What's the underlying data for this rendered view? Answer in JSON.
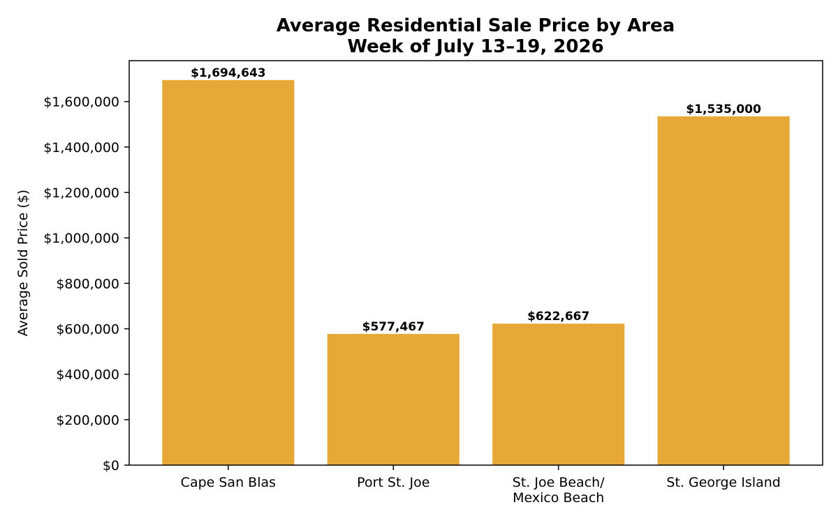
{
  "chart_data": {
    "type": "bar",
    "title_lines": [
      "Average Residential Sale Price by Area",
      "Week of July 13–19, 2026"
    ],
    "xlabel": "",
    "ylabel": "Average Sold Price ($)",
    "categories": [
      [
        "Cape San Blas"
      ],
      [
        "Port St. Joe"
      ],
      [
        "St. Joe Beach/",
        "Mexico Beach"
      ],
      [
        "St. George Island"
      ]
    ],
    "values": [
      1694643,
      577467,
      622667,
      1535000
    ],
    "data_labels": [
      "$1,694,643",
      "$577,467",
      "$622,667",
      "$1,535,000"
    ],
    "ylim": [
      0,
      1780000
    ],
    "yticks": [
      0,
      200000,
      400000,
      600000,
      800000,
      1000000,
      1200000,
      1400000,
      1600000
    ],
    "ytick_labels": [
      "$0",
      "$200,000",
      "$400,000",
      "$600,000",
      "$800,000",
      "$1,000,000",
      "$1,200,000",
      "$1,400,000",
      "$1,600,000"
    ],
    "bar_color": "#E6A837",
    "grid": false,
    "legend": "none"
  }
}
